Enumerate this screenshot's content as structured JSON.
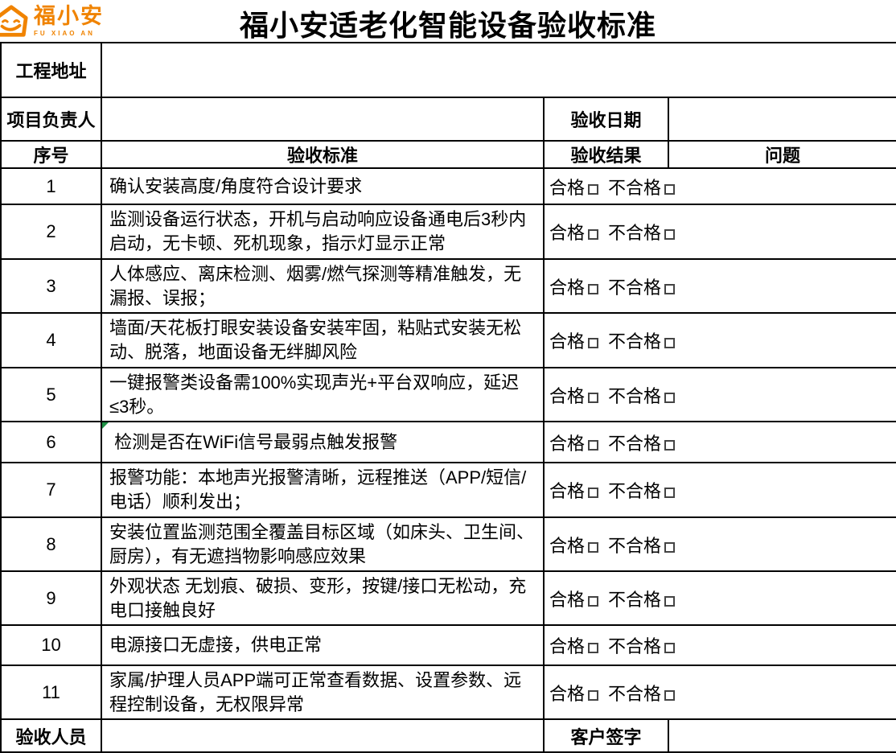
{
  "title": "福小安适老化智能设备验收标准",
  "logo": {
    "brand_cn": "福小安",
    "brand_en": "FU XIAO AN"
  },
  "colors": {
    "brand_orange": "#F08300",
    "note_marker_green": "#1F9245",
    "border_black": "#000000"
  },
  "form": {
    "project_address_label": "工程地址",
    "project_address_value": "",
    "project_manager_label": "项目负责人",
    "project_manager_value": "",
    "acceptance_date_label": "验收日期",
    "acceptance_date_value": "",
    "inspector_label": "验收人员",
    "inspector_value": "",
    "customer_signature_label": "客户签字",
    "customer_signature_value": ""
  },
  "table": {
    "headers": [
      "序号",
      "验收标准",
      "验收结果",
      "问题"
    ],
    "result_options": {
      "pass": "合格",
      "fail": "不合格",
      "checkbox_symbol": "□"
    },
    "rows": [
      {
        "no": "1",
        "criteria": "确认安装高度/角度符合设计要求"
      },
      {
        "no": "2",
        "criteria": "监测设备运行状态，开机与启动响应设备通电后3秒内启动，无卡顿、死机现象，指示灯显示正常"
      },
      {
        "no": "3",
        "criteria": "人体感应、离床检测、烟雾/燃气探测等精准触发，无漏报、误报；"
      },
      {
        "no": "4",
        "criteria": "墙面/天花板打眼安装设备安装牢固，粘贴式安装无松动、脱落，地面设备无绊脚风险"
      },
      {
        "no": "5",
        "criteria": "一键报警类设备需100%实现声光+平台双响应，延迟≤3秒。"
      },
      {
        "no": "6",
        "criteria": " 检测是否在WiFi信号最弱点触发报警",
        "has_note_marker": true
      },
      {
        "no": "7",
        "criteria": "报警功能：本地声光报警清晰，远程推送（APP/短信/电话）顺利发出；"
      },
      {
        "no": "8",
        "criteria": "安装位置监测范围全覆盖目标区域（如床头、卫生间、厨房），有无遮挡物影响感应效果"
      },
      {
        "no": "9",
        "criteria": "外观状态 无划痕、破损、变形，按键/接口无松动，充电口接触良好"
      },
      {
        "no": "10",
        "criteria": "电源接口无虚接，供电正常"
      },
      {
        "no": "11",
        "criteria": "家属/护理人员APP端可正常查看数据、设置参数、远程控制设备，无权限异常"
      }
    ]
  }
}
